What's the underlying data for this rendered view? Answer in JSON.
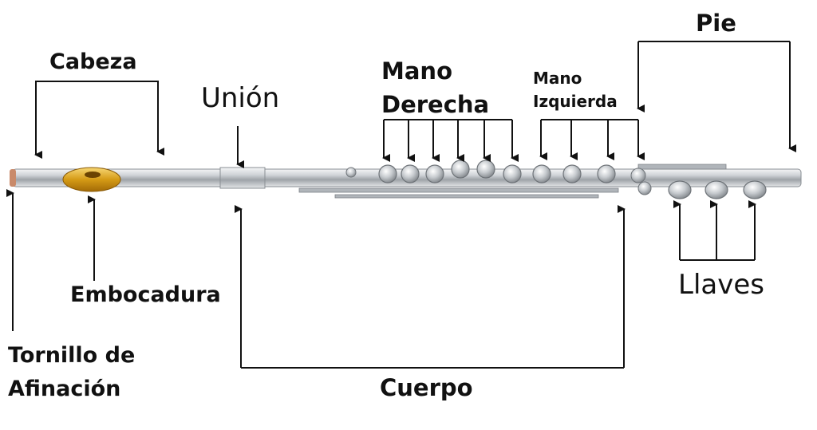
{
  "labels": {
    "cabeza": "Cabeza",
    "union": "Unión",
    "mano_derecha_1": "Mano",
    "mano_derecha_2": "Derecha",
    "mano_izquierda_1": "Mano",
    "mano_izquierda_2": "Izquierda",
    "pie": "Pie",
    "embocadura": "Embocadura",
    "tornillo_1": "Tornillo de",
    "tornillo_2": "Afinación",
    "cuerpo": "Cuerpo",
    "llaves": "Llaves"
  },
  "colors": {
    "line": "#111111",
    "silver": "#c9cdd1",
    "gold": "#d9a21b",
    "tip": "#c98a6a"
  }
}
